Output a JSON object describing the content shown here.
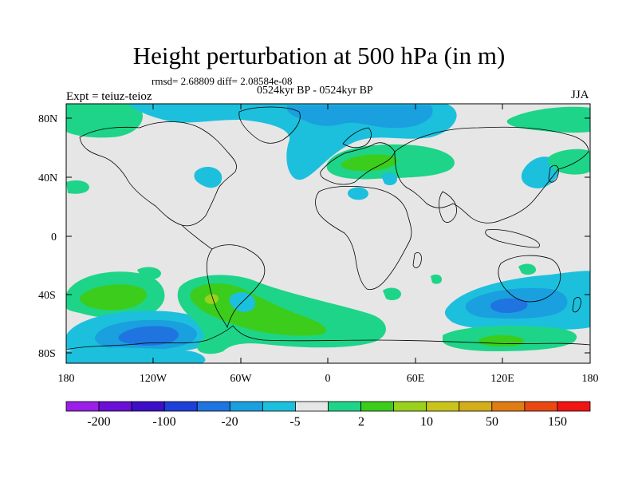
{
  "title": "Height perturbation at 500 hPa (in m)",
  "stats": "rmsd= 2.68809 diff= 2.08584e-08",
  "period": "0524kyr BP - 0524kyr BP",
  "experiment": "Expt = teiuz-teioz",
  "season": "JJA",
  "map": {
    "lat_ticks": [
      "80N",
      "40N",
      "0",
      "40S",
      "80S"
    ],
    "lon_ticks": [
      "180",
      "120W",
      "60W",
      "0",
      "60E",
      "120E",
      "180"
    ],
    "background_color": "#e6e6e6"
  },
  "colorbar": {
    "colors": [
      "#9b1fe8",
      "#6a0fd6",
      "#3d10c8",
      "#1e40d8",
      "#1f74e0",
      "#1a9fdf",
      "#1cc0dd",
      "#e6e6e6",
      "#1ed488",
      "#3ccc1c",
      "#9ad11c",
      "#c8c41c",
      "#d4ae1a",
      "#e07c15",
      "#ea4813",
      "#f01512"
    ],
    "labels": [
      "-200",
      "-100",
      "-20",
      "-5",
      "2",
      "10",
      "50",
      "150"
    ]
  }
}
